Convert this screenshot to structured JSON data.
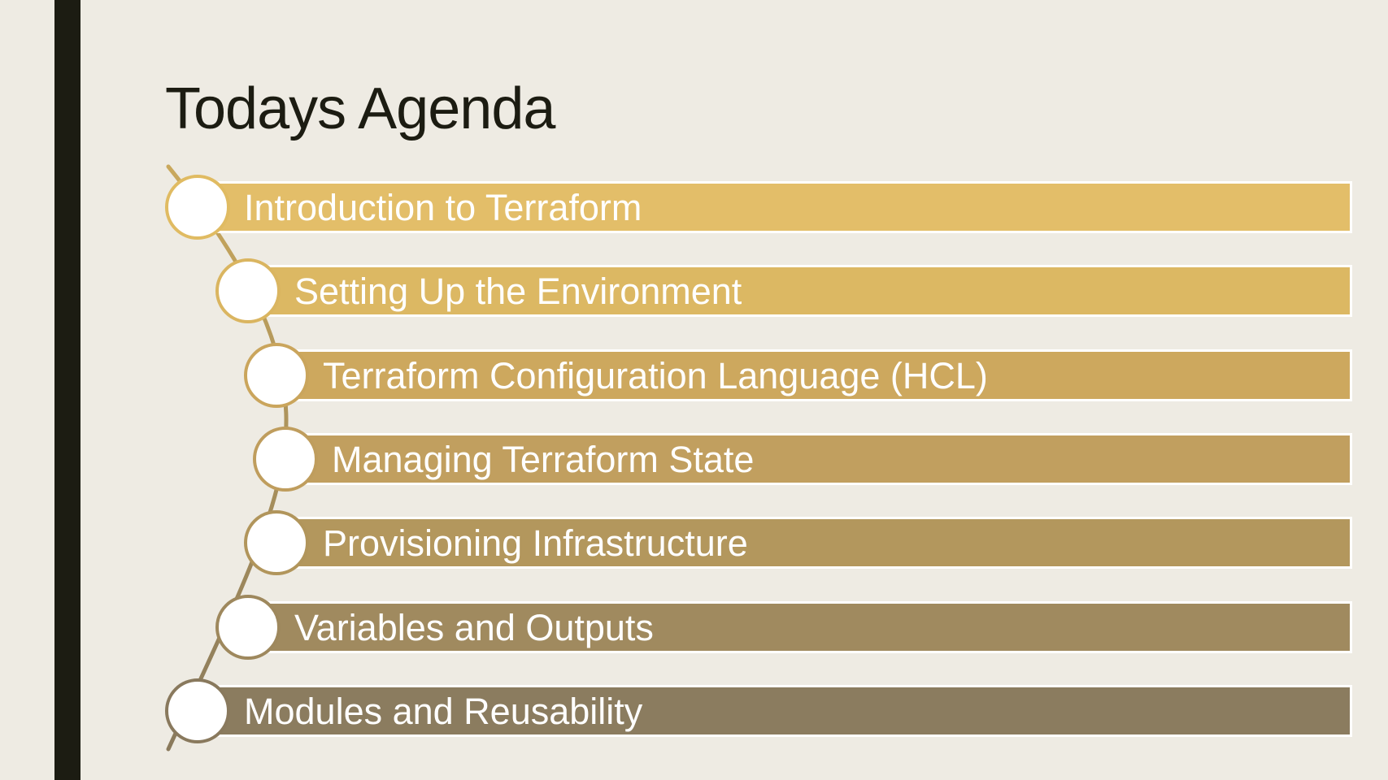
{
  "title": "Todays Agenda",
  "agenda": {
    "items": [
      {
        "label": "Introduction to Terraform",
        "color": "#e3be69",
        "ring": "#e0bb62"
      },
      {
        "label": "Setting Up the Environment",
        "color": "#dcb863",
        "ring": "#dab560"
      },
      {
        "label": "Terraform Configuration Language (HCL)",
        "color": "#cda85e",
        "ring": "#caa55c"
      },
      {
        "label": "Managing Terraform State",
        "color": "#c19f5f",
        "ring": "#bf9d5d"
      },
      {
        "label": "Provisioning Infrastructure",
        "color": "#b3975d",
        "ring": "#b1955b"
      },
      {
        "label": "Variables and Outputs",
        "color": "#a08a5f",
        "ring": "#9e885d"
      },
      {
        "label": "Modules and Reusability",
        "color": "#8b7c5f",
        "ring": "#89795d"
      }
    ]
  },
  "colors": {
    "background": "#eeebe3",
    "side_bar": "#1c1c12",
    "title_text": "#1c1c12",
    "curve": "#8a7a5c",
    "bar_border": "#ffffff",
    "circle_fill": "#ffffff"
  }
}
